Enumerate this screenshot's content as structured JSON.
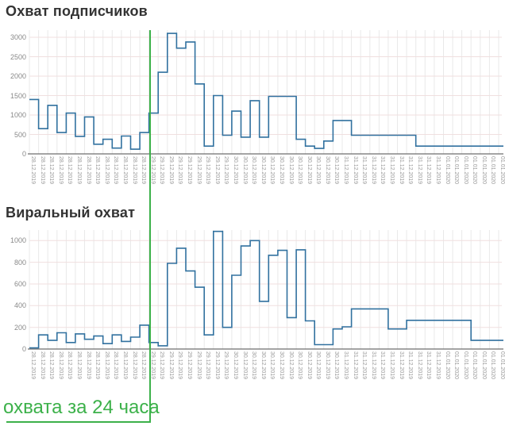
{
  "colors": {
    "line": "#31719f",
    "accent_green": "#3cb14a",
    "grid_vertical": "#e9e9e9",
    "grid_horizontal": "#f0dfdf",
    "axis": "#6e6e6e",
    "title": "#333333",
    "tick_label": "#9a9a9a"
  },
  "annotation": {
    "label": "охвата за 24 часа",
    "highlight_date": "29.12.2019"
  },
  "chart_data": [
    {
      "type": "line",
      "line_style": "step",
      "title": "Охват подписчиков",
      "xlabel": "",
      "ylabel": "",
      "ylim": [
        0,
        3180
      ],
      "yticks": [
        0,
        500,
        1000,
        1500,
        2000,
        2500,
        3000
      ],
      "grid": true,
      "x_tick_rotation": 90,
      "x": [
        "28.12.2019",
        "28.12.2019",
        "28.12.2019",
        "28.12.2019",
        "28.12.2019",
        "28.12.2019",
        "28.12.2019",
        "28.12.2019",
        "28.12.2019",
        "28.12.2019",
        "28.12.2019",
        "28.12.2019",
        "28.12.2019",
        "29.12.2019",
        "29.12.2019",
        "29.12.2019",
        "29.12.2019",
        "29.12.2019",
        "29.12.2019",
        "29.12.2019",
        "29.12.2019",
        "29.12.2019",
        "30.12.2019",
        "30.12.2019",
        "30.12.2019",
        "30.12.2019",
        "30.12.2019",
        "30.12.2019",
        "30.12.2019",
        "30.12.2019",
        "30.12.2019",
        "30.12.2019",
        "30.12.2019",
        "30.12.2019",
        "31.12.2019",
        "31.12.2019",
        "31.12.2019",
        "31.12.2019",
        "31.12.2019",
        "31.12.2019",
        "31.12.2019",
        "31.12.2019",
        "31.12.2019",
        "31.12.2019",
        "31.12.2019",
        "01.01.2020",
        "01.01.2020",
        "01.01.2020",
        "01.01.2020",
        "01.01.2020",
        "01.01.2020",
        "01.01.2020"
      ],
      "values": [
        1400,
        650,
        1250,
        550,
        1050,
        450,
        950,
        250,
        375,
        150,
        460,
        120,
        550,
        1050,
        2100,
        3100,
        2720,
        2880,
        1800,
        200,
        1500,
        480,
        1100,
        430,
        1370,
        430,
        1480,
        1480,
        1480,
        375,
        200,
        140,
        330,
        860,
        860,
        480,
        480,
        480,
        480,
        480,
        480,
        480,
        200,
        200,
        200,
        200,
        200,
        200,
        200,
        200,
        200,
        200
      ],
      "legend": null
    },
    {
      "type": "line",
      "line_style": "step",
      "title": "Виральный охват",
      "xlabel": "",
      "ylabel": "",
      "ylim": [
        0,
        1100
      ],
      "yticks": [
        0,
        200,
        400,
        600,
        800,
        1000
      ],
      "grid": true,
      "x_tick_rotation": 90,
      "x": [
        "28.12.2019",
        "28.12.2019",
        "28.12.2019",
        "28.12.2019",
        "28.12.2019",
        "28.12.2019",
        "28.12.2019",
        "28.12.2019",
        "28.12.2019",
        "28.12.2019",
        "28.12.2019",
        "28.12.2019",
        "28.12.2019",
        "29.12.2019",
        "29.12.2019",
        "29.12.2019",
        "29.12.2019",
        "29.12.2019",
        "29.12.2019",
        "29.12.2019",
        "29.12.2019",
        "29.12.2019",
        "30.12.2019",
        "30.12.2019",
        "30.12.2019",
        "30.12.2019",
        "30.12.2019",
        "30.12.2019",
        "30.12.2019",
        "30.12.2019",
        "30.12.2019",
        "30.12.2019",
        "30.12.2019",
        "30.12.2019",
        "31.12.2019",
        "31.12.2019",
        "31.12.2019",
        "31.12.2019",
        "31.12.2019",
        "31.12.2019",
        "31.12.2019",
        "31.12.2019",
        "31.12.2019",
        "31.12.2019",
        "31.12.2019",
        "01.01.2020",
        "01.01.2020",
        "01.01.2020",
        "01.01.2020",
        "01.01.2020",
        "01.01.2020",
        "01.01.2020"
      ],
      "values": [
        10,
        130,
        80,
        150,
        60,
        140,
        90,
        120,
        50,
        130,
        70,
        110,
        220,
        60,
        30,
        790,
        930,
        720,
        570,
        130,
        1085,
        200,
        680,
        950,
        1000,
        440,
        865,
        910,
        290,
        915,
        260,
        40,
        40,
        185,
        205,
        370,
        370,
        370,
        370,
        185,
        185,
        265,
        265,
        265,
        265,
        265,
        265,
        265,
        80,
        80,
        80,
        80
      ],
      "legend": null
    }
  ]
}
